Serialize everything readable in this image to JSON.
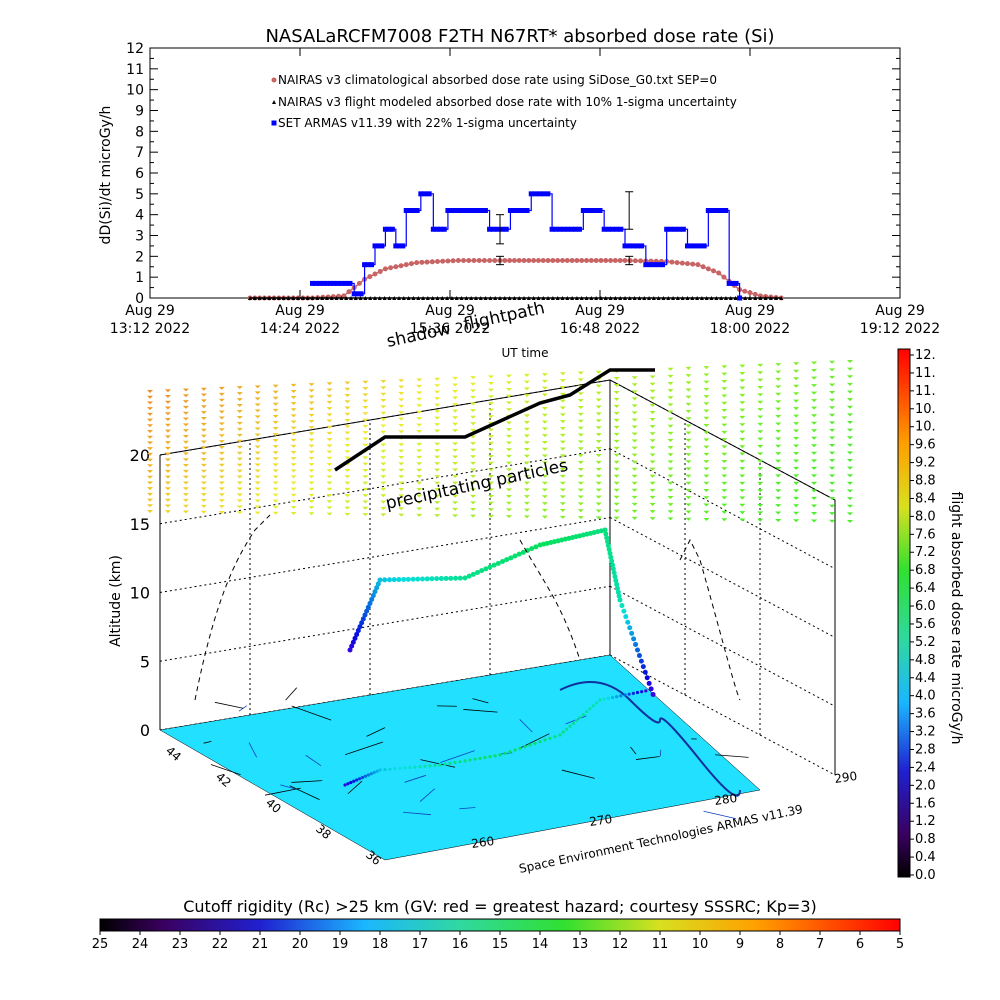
{
  "chart_data": [
    {
      "type": "line",
      "title": "NASALaRCFM7008  F2TH N67RT* absorbed dose rate (Si)",
      "xlabel": "",
      "ylabel": "dD(Si)/dt microGy/h",
      "ylim": [
        0,
        12
      ],
      "yticks": [
        "0",
        "1",
        "2",
        "3",
        "4",
        "5",
        "6",
        "7",
        "8",
        "9",
        "10",
        "11",
        "12"
      ],
      "xticks": [
        {
          "day": "Aug 29",
          "time": "13:12 2022"
        },
        {
          "day": "Aug 29",
          "time": "14:24 2022"
        },
        {
          "day": "Aug 29",
          "time": "15:36 2022"
        },
        {
          "day": "Aug 29",
          "time": "16:48 2022"
        },
        {
          "day": "Aug 29",
          "time": "18:00 2022"
        },
        {
          "day": "Aug 29",
          "time": "19:12 2022"
        }
      ],
      "legend_position": "top-left",
      "series": [
        {
          "name": "NAIRAS v3 climatological absorbed dose rate using SiDose_G0.txt SEP=0",
          "color": "#c86464",
          "x": [
            "14:00",
            "14:30",
            "14:45",
            "14:55",
            "15:05",
            "15:20",
            "15:40",
            "16:00",
            "16:30",
            "17:00",
            "17:20",
            "17:35",
            "17:45",
            "17:55",
            "18:05",
            "18:15"
          ],
          "values": [
            0,
            0,
            0.1,
            0.9,
            1.4,
            1.7,
            1.8,
            1.8,
            1.8,
            1.8,
            1.75,
            1.6,
            1.2,
            0.4,
            0.1,
            0
          ]
        },
        {
          "name": "NAIRAS v3 flight modeled absorbed dose rate with 10% 1-sigma uncertainty",
          "color": "#000000",
          "x": [
            "14:00",
            "14:30",
            "15:00",
            "15:30",
            "16:00",
            "16:30",
            "17:00",
            "17:30",
            "18:00",
            "18:15"
          ],
          "values": [
            0,
            0,
            0,
            0,
            0,
            0,
            0,
            0,
            0,
            0
          ]
        },
        {
          "name": "SET ARMAS v11.39 with 22% 1-sigma uncertainty",
          "color": "#0000ff",
          "x": [
            "14:30",
            "14:37",
            "14:42",
            "14:50",
            "14:55",
            "15:00",
            "15:05",
            "15:10",
            "15:15",
            "15:22",
            "15:28",
            "15:35",
            "15:45",
            "15:55",
            "16:05",
            "16:15",
            "16:25",
            "16:40",
            "16:50",
            "17:00",
            "17:10",
            "17:20",
            "17:30",
            "17:40",
            "17:45",
            "17:50",
            "17:55"
          ],
          "values": [
            0.7,
            0.7,
            0.7,
            0.2,
            1.6,
            2.5,
            3.3,
            2.5,
            4.2,
            5.0,
            3.3,
            4.2,
            4.2,
            3.3,
            4.2,
            5.0,
            3.3,
            4.2,
            3.3,
            2.5,
            1.6,
            3.3,
            2.5,
            4.2,
            4.2,
            0.7,
            0
          ]
        }
      ],
      "error_bars": [
        {
          "x": "16:00",
          "value": 3.3,
          "low": 2.6,
          "high": 4.0
        },
        {
          "x": "16:00",
          "value": 1.8,
          "low": 1.6,
          "high": 2.0
        },
        {
          "x": "17:02",
          "value": 4.2,
          "low": 3.3,
          "high": 5.1
        },
        {
          "x": "17:02",
          "value": 1.8,
          "low": 1.6,
          "high": 2.0
        }
      ]
    },
    {
      "type": "scatter",
      "title": "",
      "annotations": [
        "shadow",
        "flightpath",
        "precipitating particles",
        "UT time",
        "Space Environment Technologies ARMAS v11.39"
      ],
      "zlabel": "Altitude (km)",
      "zlim": [
        0,
        20
      ],
      "zticks": [
        "0",
        "5",
        "10",
        "15",
        "20"
      ],
      "latitude_ticks": [
        "44",
        "42",
        "40",
        "38",
        "36"
      ],
      "longitude_ticks": [
        "260",
        "270",
        "280",
        "290"
      ],
      "flightpath": {
        "longitude": [
          261,
          263.5,
          267,
          272,
          276,
          279,
          281
        ],
        "latitude": [
          40.2,
          41.0,
          41.2,
          41.6,
          42.2,
          43.2,
          43.6
        ],
        "altitude_km": [
          6.0,
          11.5,
          11.5,
          13.0,
          13.5,
          14.5,
          3.0
        ],
        "dose_rate": [
          0.8,
          3.6,
          5.0,
          5.6,
          5.2,
          4.6,
          0.4
        ]
      },
      "colorbar": {
        "label": "flight absorbed dose rate microGy/h",
        "ticks": [
          "0.0",
          "0.4",
          "0.8",
          "1.2",
          "1.6",
          "2.0",
          "2.4",
          "2.8",
          "3.2",
          "3.6",
          "4.0",
          "4.4",
          "4.8",
          "5.2",
          "5.6",
          "6.0",
          "6.4",
          "6.8",
          "7.2",
          "7.6",
          "8.0",
          "8.4",
          "8.8",
          "9.2",
          "9.6",
          "10.",
          "10.",
          "11.",
          "11.",
          "12."
        ]
      }
    },
    {
      "type": "heatmap",
      "title": "Cutoff rigidity (Rc) >25 km (GV: red = greatest hazard; courtesy SSSRC; Kp=3)",
      "ticks": [
        "25",
        "24",
        "23",
        "22",
        "21",
        "20",
        "19",
        "18",
        "17",
        "16",
        "15",
        "14",
        "13",
        "12",
        "11",
        "10",
        "9",
        "8",
        "7",
        "6",
        "5"
      ]
    }
  ]
}
